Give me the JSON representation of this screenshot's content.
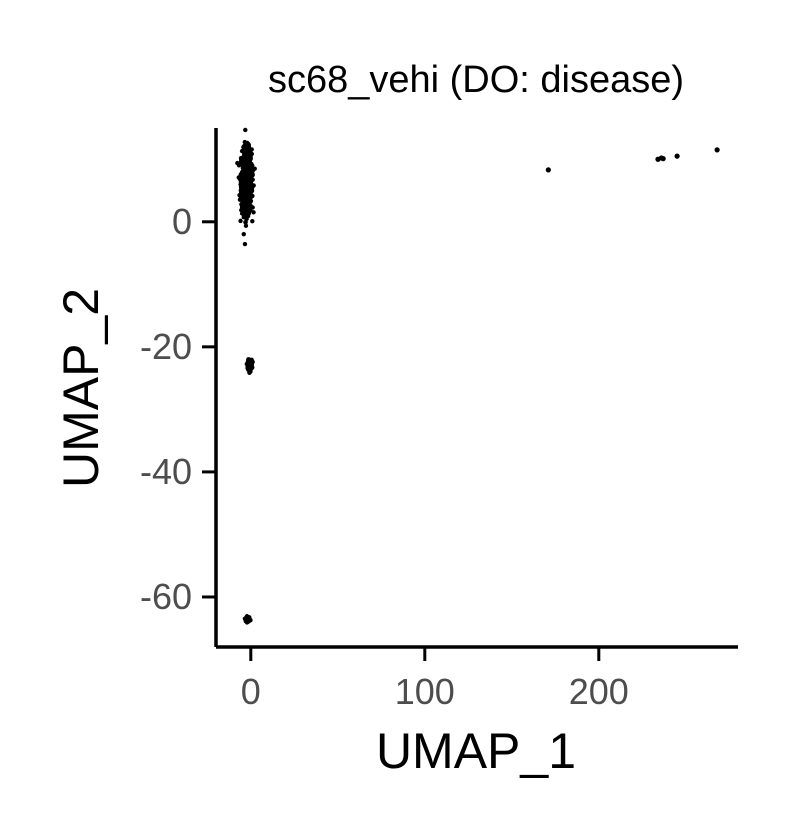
{
  "chart_data": {
    "type": "scatter",
    "title": "sc68_vehi (DO: disease)",
    "xlabel": "UMAP_1",
    "ylabel": "UMAP_2",
    "xlim": [
      -20,
      280
    ],
    "ylim": [
      -68,
      15
    ],
    "x_ticks": [
      {
        "value": 0,
        "label": "0"
      },
      {
        "value": 100,
        "label": "100"
      },
      {
        "value": 200,
        "label": "200"
      }
    ],
    "y_ticks": [
      {
        "value": 0,
        "label": "0"
      },
      {
        "value": -20,
        "label": "-20"
      },
      {
        "value": -40,
        "label": "-40"
      },
      {
        "value": -60,
        "label": "-60"
      }
    ],
    "point_color": "#000000",
    "grid": false,
    "legend": "none",
    "clusters": [
      {
        "x": -2.5,
        "y": 6.5,
        "sx": 1.5,
        "sy": 2.5,
        "n": 900
      },
      {
        "x": -0.5,
        "y": -22.9,
        "sx": 0.6,
        "sy": 0.4,
        "n": 140
      },
      {
        "x": -1.5,
        "y": -63.5,
        "sx": 0.5,
        "sy": 0.2,
        "n": 60
      }
    ],
    "points": [
      {
        "x": 171,
        "y": 8.3
      },
      {
        "x": 234,
        "y": 10.0
      },
      {
        "x": 236,
        "y": 10.2
      },
      {
        "x": 237,
        "y": 10.1
      },
      {
        "x": 245,
        "y": 10.5
      },
      {
        "x": 268,
        "y": 11.5
      }
    ]
  }
}
